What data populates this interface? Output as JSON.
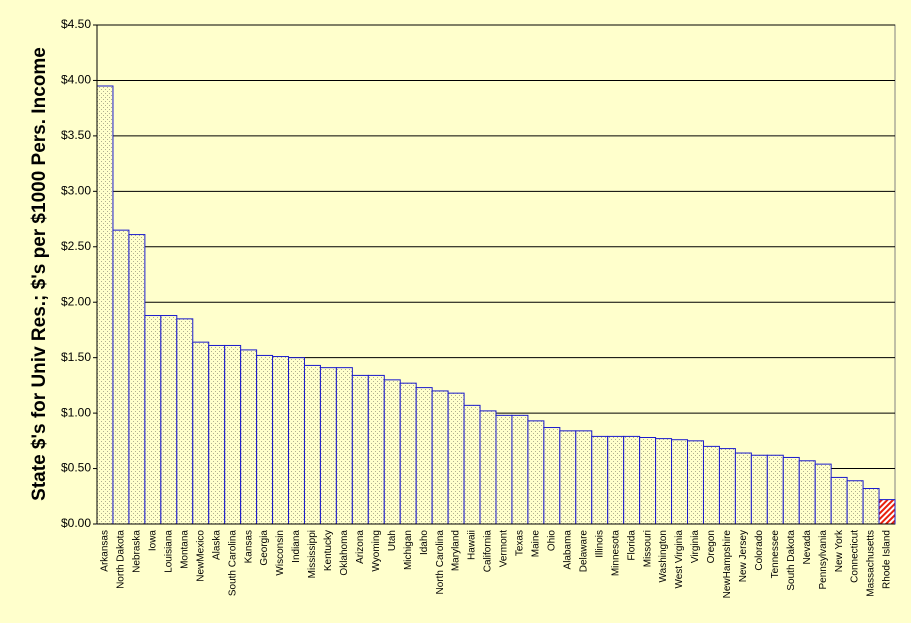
{
  "chart_data": {
    "type": "bar",
    "ylabel": "State $'s for Univ Res.; $'s per $1000 Pers. Income",
    "categories": [
      "Arkansas",
      "North Dakota",
      "Nebraska",
      "Iowa",
      "Louisiana",
      "Montana",
      "NewMexico",
      "Alaska",
      "South Carolina",
      "Kansas",
      "Georgia",
      "Wisconsin",
      "Indiana",
      "Mississippi",
      "Kentucky",
      "Oklahoma",
      "Arizona",
      "Wyoming",
      "Utah",
      "Michigan",
      "Idaho",
      "North Carolina",
      "Maryland",
      "Hawaii",
      "California",
      "Vermont",
      "Texas",
      "Maine",
      "Ohio",
      "Alabama",
      "Delaware",
      "Illinois",
      "Minnesota",
      "Florida",
      "Missouri",
      "Washington",
      "West Virginia",
      "Virginia",
      "Oregon",
      "NewHampshire",
      "New Jersey",
      "Colorado",
      "Tennessee",
      "South Dakota",
      "Nevada",
      "Pennsylvania",
      "New York",
      "Connecticut",
      "Massachusetts",
      "Rhode Island"
    ],
    "values": [
      3.95,
      2.65,
      2.61,
      1.88,
      1.88,
      1.85,
      1.64,
      1.61,
      1.61,
      1.57,
      1.52,
      1.51,
      1.5,
      1.43,
      1.41,
      1.41,
      1.34,
      1.34,
      1.3,
      1.27,
      1.23,
      1.2,
      1.18,
      1.07,
      1.02,
      0.98,
      0.98,
      0.93,
      0.87,
      0.84,
      0.84,
      0.79,
      0.79,
      0.79,
      0.78,
      0.77,
      0.76,
      0.75,
      0.7,
      0.68,
      0.64,
      0.62,
      0.62,
      0.6,
      0.57,
      0.54,
      0.42,
      0.39,
      0.32,
      0.22
    ],
    "colors": [
      "#ffffcc",
      "#ffffcc",
      "#ffffcc",
      "#ffffcc",
      "#ffffcc",
      "#ffffcc",
      "#ffffcc",
      "#ffffcc",
      "#ffffcc",
      "#ffffcc",
      "#ffffcc",
      "#ffffcc",
      "#ffffcc",
      "#ffffcc",
      "#ffffcc",
      "#ffffcc",
      "#ffffcc",
      "#ffffcc",
      "#ffffcc",
      "#ffffcc",
      "#ffffcc",
      "#ffffcc",
      "#ffffcc",
      "#ffffcc",
      "#ffffcc",
      "#ffffcc",
      "#ffffcc",
      "#ffffcc",
      "#ffffcc",
      "#ffffcc",
      "#ffffcc",
      "#ffffcc",
      "#ffffcc",
      "#ffffcc",
      "#ffffcc",
      "#ffffcc",
      "#ffffcc",
      "#ffffcc",
      "#ffffcc",
      "#ffffcc",
      "#ffffcc",
      "#ffffcc",
      "#ffffcc",
      "#ffffcc",
      "#ffffcc",
      "#ffffcc",
      "#ffffcc",
      "#ffffcc",
      "#ffffcc",
      "#e8200c"
    ],
    "edge_color": "#1a1acc",
    "ylim": [
      0,
      4.5
    ],
    "yticks": [
      {
        "value": 0,
        "label": "$0.00"
      },
      {
        "value": 0.5,
        "label": "$0.50"
      },
      {
        "value": 1,
        "label": "$1.00"
      },
      {
        "value": 1.5,
        "label": "$1.50"
      },
      {
        "value": 2,
        "label": "$2.00"
      },
      {
        "value": 2.5,
        "label": "$2.50"
      },
      {
        "value": 3,
        "label": "$3.00"
      },
      {
        "value": 3.5,
        "label": "$3.50"
      },
      {
        "value": 4,
        "label": "$4.00"
      },
      {
        "value": 4.5,
        "label": "$4.50"
      }
    ],
    "grid": true
  }
}
